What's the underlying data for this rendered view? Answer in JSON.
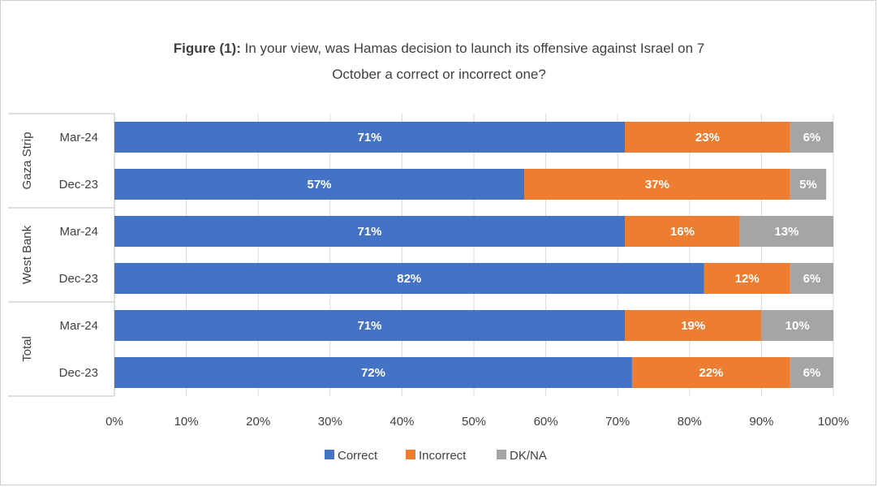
{
  "title": {
    "prefix": "Figure (1):",
    "line1": "In your view, was Hamas decision to launch its offensive against Israel on 7",
    "line2": "October a correct or incorrect one?"
  },
  "colors": {
    "Correct": "#4472c4",
    "Incorrect": "#ed7d31",
    "DK/NA": "#a5a5a5",
    "grid": "#d9d9d9",
    "axis": "#bfbfbf"
  },
  "chart_data": {
    "type": "bar",
    "orientation": "horizontal",
    "stacking": "percent",
    "title": "Figure (1): In your view, was Hamas decision to launch its offensive against Israel on 7 October a correct or incorrect one?",
    "groups": [
      {
        "name": "Gaza Strip",
        "rows": [
          "Mar-24",
          "Dec-23"
        ]
      },
      {
        "name": "West Bank",
        "rows": [
          "Mar-24",
          "Dec-23"
        ]
      },
      {
        "name": "Total",
        "rows": [
          "Mar-24",
          "Dec-23"
        ]
      }
    ],
    "categories": [
      "Gaza Strip Mar-24",
      "Gaza Strip Dec-23",
      "West Bank Mar-24",
      "West Bank Dec-23",
      "Total Mar-24",
      "Total Dec-23"
    ],
    "series": [
      {
        "name": "Correct",
        "values": [
          71,
          57,
          71,
          82,
          71,
          72
        ]
      },
      {
        "name": "Incorrect",
        "values": [
          23,
          37,
          16,
          12,
          19,
          22
        ]
      },
      {
        "name": "DK/NA",
        "values": [
          6,
          5,
          13,
          6,
          10,
          6
        ]
      }
    ],
    "xticks": [
      "0%",
      "10%",
      "20%",
      "30%",
      "40%",
      "50%",
      "60%",
      "70%",
      "80%",
      "90%",
      "100%"
    ],
    "xlim": [
      0,
      100
    ],
    "grid": true,
    "legend": "bottom-center"
  }
}
